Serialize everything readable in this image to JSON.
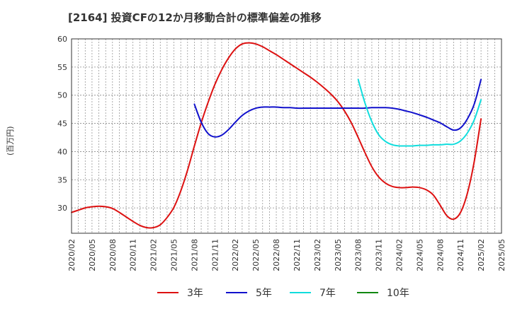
{
  "title": "[2164]  投資CFの12か月移動合計の標準偏差の推移",
  "chart_data": {
    "type": "line",
    "title": "[2164]  投資CFの12か月移動合計の標準偏差の推移",
    "ylabel": "(百万円)",
    "xlabel": "",
    "ylim": [
      25.5,
      60
    ],
    "yticks": [
      30,
      35,
      40,
      45,
      50,
      55,
      60
    ],
    "xticks": [
      "2020/02",
      "2020/05",
      "2020/08",
      "2020/11",
      "2021/02",
      "2021/05",
      "2021/08",
      "2021/11",
      "2022/02",
      "2022/05",
      "2022/08",
      "2022/11",
      "2023/02",
      "2023/05",
      "2023/08",
      "2023/11",
      "2024/02",
      "2024/05",
      "2024/08",
      "2024/11",
      "2025/02",
      "2025/05"
    ],
    "grid": true,
    "legend_position": "bottom",
    "series": [
      {
        "name": "3年",
        "color": "#dd1111",
        "x": [
          "2020/02",
          "2020/03",
          "2020/04",
          "2020/05",
          "2020/06",
          "2020/07",
          "2020/08",
          "2020/09",
          "2020/10",
          "2020/11",
          "2020/12",
          "2021/01",
          "2021/02",
          "2021/03",
          "2021/04",
          "2021/05",
          "2021/06",
          "2021/07",
          "2021/08",
          "2021/09",
          "2021/10",
          "2021/11",
          "2021/12",
          "2022/01",
          "2022/02",
          "2022/03",
          "2022/04",
          "2022/05",
          "2022/06",
          "2022/07",
          "2022/08",
          "2022/09",
          "2022/10",
          "2022/11",
          "2022/12",
          "2023/01",
          "2023/02",
          "2023/03",
          "2023/04",
          "2023/05",
          "2023/06",
          "2023/07",
          "2023/08",
          "2023/09",
          "2023/10",
          "2023/11",
          "2023/12",
          "2024/01",
          "2024/02",
          "2024/03",
          "2024/04",
          "2024/05",
          "2024/06",
          "2024/07",
          "2024/08",
          "2024/09",
          "2024/10",
          "2024/11",
          "2024/12",
          "2025/01",
          "2025/02"
        ],
        "values": [
          29.2,
          29.6,
          30.0,
          30.2,
          30.3,
          30.2,
          29.9,
          29.2,
          28.4,
          27.6,
          26.9,
          26.5,
          26.5,
          27.0,
          28.3,
          30.1,
          33.0,
          36.7,
          41.0,
          45.1,
          48.7,
          51.9,
          54.5,
          56.6,
          58.2,
          59.1,
          59.3,
          59.1,
          58.6,
          57.9,
          57.2,
          56.4,
          55.6,
          54.8,
          54.0,
          53.2,
          52.3,
          51.3,
          50.2,
          48.9,
          47.2,
          45.1,
          42.5,
          39.8,
          37.3,
          35.5,
          34.4,
          33.8,
          33.6,
          33.6,
          33.7,
          33.6,
          33.2,
          32.3,
          30.5,
          28.6,
          28.0,
          29.2,
          32.6,
          38.2,
          45.8
        ]
      },
      {
        "name": "5年",
        "color": "#1111cc",
        "x": [
          "2021/08",
          "2021/09",
          "2021/10",
          "2021/11",
          "2021/12",
          "2022/01",
          "2022/02",
          "2022/03",
          "2022/04",
          "2022/05",
          "2022/06",
          "2022/07",
          "2022/08",
          "2022/09",
          "2022/10",
          "2022/11",
          "2022/12",
          "2023/01",
          "2023/02",
          "2023/03",
          "2023/04",
          "2023/05",
          "2023/06",
          "2023/07",
          "2023/08",
          "2023/09",
          "2023/10",
          "2023/11",
          "2023/12",
          "2024/01",
          "2024/02",
          "2024/03",
          "2024/04",
          "2024/05",
          "2024/06",
          "2024/07",
          "2024/08",
          "2024/09",
          "2024/10",
          "2024/11",
          "2024/12",
          "2025/01",
          "2025/02"
        ],
        "values": [
          48.4,
          45.2,
          43.2,
          42.6,
          42.9,
          43.9,
          45.2,
          46.4,
          47.2,
          47.7,
          47.9,
          47.9,
          47.9,
          47.8,
          47.8,
          47.7,
          47.7,
          47.7,
          47.7,
          47.7,
          47.7,
          47.7,
          47.7,
          47.7,
          47.7,
          47.7,
          47.8,
          47.8,
          47.8,
          47.7,
          47.5,
          47.2,
          46.9,
          46.5,
          46.1,
          45.6,
          45.1,
          44.4,
          43.8,
          44.2,
          45.8,
          48.4,
          52.8
        ]
      },
      {
        "name": "7年",
        "color": "#11dddd",
        "x": [
          "2023/08",
          "2023/09",
          "2023/10",
          "2023/11",
          "2023/12",
          "2024/01",
          "2024/02",
          "2024/03",
          "2024/04",
          "2024/05",
          "2024/06",
          "2024/07",
          "2024/08",
          "2024/09",
          "2024/10",
          "2024/11",
          "2024/12",
          "2025/01",
          "2025/02"
        ],
        "values": [
          52.8,
          48.6,
          45.3,
          43.0,
          41.8,
          41.2,
          41.0,
          41.0,
          41.0,
          41.1,
          41.1,
          41.2,
          41.2,
          41.3,
          41.3,
          41.9,
          43.3,
          45.6,
          49.2
        ]
      },
      {
        "name": "10年",
        "color": "#118811",
        "x": [],
        "values": []
      }
    ]
  }
}
